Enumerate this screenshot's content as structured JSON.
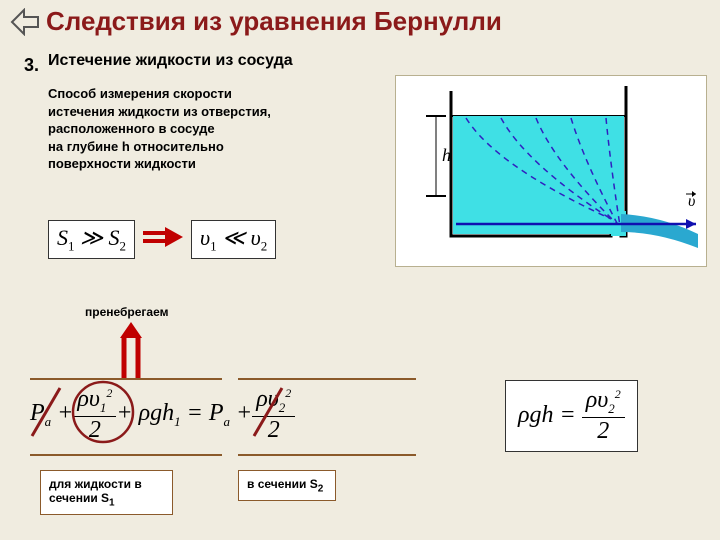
{
  "title": "Следствия из уравнения Бернулли",
  "item_number": "3.",
  "subtitle": "Истечение жидкости из сосуда",
  "description_lines": [
    "Способ измерения скорости",
    "истечения жидкости из отверстия,",
    "расположенного в сосуде",
    "на глубине h относительно",
    "поверхности жидкости"
  ],
  "ineq_left_html": "S<span class='sub'>1</span> ≫ S<span class='sub'>2</span>",
  "ineq_right_html": "υ<span class='sub'>1</span> ≪ υ<span class='sub'>2</span>",
  "neglect": "пренебрегаем",
  "label1": "для жидкости в сечении S",
  "label1_sub": "1",
  "label2": "в сечении S",
  "label2_sub": "2",
  "vessel": {
    "h_label": "h",
    "v_label": "υ⃗",
    "water_color": "#3fe0e5",
    "dash_color": "#3020c0",
    "jet_color": "#2aa8d0"
  },
  "colors": {
    "title": "#8b1a1a",
    "arrow_red": "#c00000",
    "rule": "#8b5a2b",
    "bg": "#f0ece0"
  }
}
